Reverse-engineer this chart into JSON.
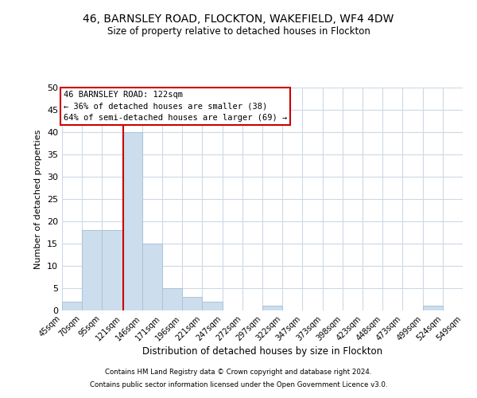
{
  "title": "46, BARNSLEY ROAD, FLOCKTON, WAKEFIELD, WF4 4DW",
  "subtitle": "Size of property relative to detached houses in Flockton",
  "xlabel": "Distribution of detached houses by size in Flockton",
  "ylabel": "Number of detached properties",
  "bin_edges": [
    45,
    70,
    95,
    121,
    146,
    171,
    196,
    221,
    247,
    272,
    297,
    322,
    347,
    373,
    398,
    423,
    448,
    473,
    499,
    524,
    549
  ],
  "bar_heights": [
    2,
    18,
    18,
    40,
    15,
    5,
    3,
    2,
    0,
    0,
    1,
    0,
    0,
    0,
    0,
    0,
    0,
    0,
    1,
    0
  ],
  "bar_color": "#ccdded",
  "bar_edgecolor": "#aac4d8",
  "vline_x": 122,
  "vline_color": "#cc0000",
  "ylim": [
    0,
    50
  ],
  "yticks": [
    0,
    5,
    10,
    15,
    20,
    25,
    30,
    35,
    40,
    45,
    50
  ],
  "annotation_title": "46 BARNSLEY ROAD: 122sqm",
  "annotation_line1": "← 36% of detached houses are smaller (38)",
  "annotation_line2": "64% of semi-detached houses are larger (69) →",
  "annotation_box_color": "#ffffff",
  "annotation_border_color": "#cc0000",
  "footer_line1": "Contains HM Land Registry data © Crown copyright and database right 2024.",
  "footer_line2": "Contains public sector information licensed under the Open Government Licence v3.0.",
  "background_color": "#ffffff",
  "grid_color": "#ccd9e5"
}
